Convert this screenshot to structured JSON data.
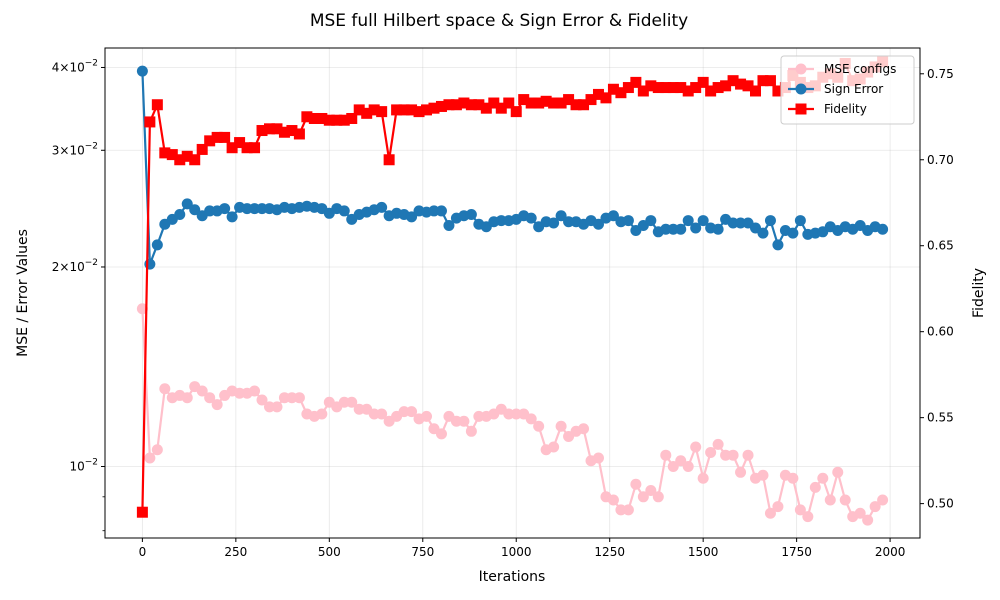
{
  "chart_data": {
    "type": "line",
    "title": "MSE full Hilbert space & Sign Error & Fidelity",
    "xlabel": "Iterations",
    "ylabel_left": "MSE / Error Values",
    "ylabel_right": "Fidelity",
    "xlim": [
      -100,
      2080
    ],
    "ylim_left": [
      0.0078,
      0.0428
    ],
    "yscale_left": "log",
    "ylim_right": [
      0.48,
      0.765
    ],
    "legend_position": "top-right",
    "grid": true,
    "x_ticks": [
      0,
      250,
      500,
      750,
      1000,
      1250,
      1500,
      1750,
      2000
    ],
    "x_tick_labels": [
      "0",
      "250",
      "500",
      "750",
      "1000",
      "1250",
      "1500",
      "1750",
      "2000"
    ],
    "y_left_ticks": [
      0.04,
      0.03,
      0.02,
      0.01
    ],
    "y_left_tick_labels": [
      {
        "base": "4",
        "mid": "×10",
        "exp": "−2"
      },
      {
        "base": "3",
        "mid": "×10",
        "exp": "−2"
      },
      {
        "base": "2",
        "mid": "×10",
        "exp": "−2"
      },
      {
        "base": "",
        "mid": "10",
        "exp": "−2"
      }
    ],
    "y_left_minor_ticks": [
      0.009,
      0.008
    ],
    "y_right_ticks": [
      0.5,
      0.55,
      0.6,
      0.65,
      0.7,
      0.75
    ],
    "y_right_tick_labels": [
      "0.50",
      "0.55",
      "0.60",
      "0.65",
      "0.70",
      "0.75"
    ],
    "x": [
      0,
      20,
      40,
      60,
      80,
      100,
      120,
      140,
      160,
      180,
      200,
      220,
      240,
      260,
      280,
      300,
      320,
      340,
      360,
      380,
      400,
      420,
      440,
      460,
      480,
      500,
      520,
      540,
      560,
      580,
      600,
      620,
      640,
      660,
      680,
      700,
      720,
      740,
      760,
      780,
      800,
      820,
      840,
      860,
      880,
      900,
      920,
      940,
      960,
      980,
      1000,
      1020,
      1040,
      1060,
      1080,
      1100,
      1120,
      1140,
      1160,
      1180,
      1200,
      1220,
      1240,
      1260,
      1280,
      1300,
      1320,
      1340,
      1360,
      1380,
      1400,
      1420,
      1440,
      1460,
      1480,
      1500,
      1520,
      1540,
      1560,
      1580,
      1600,
      1620,
      1640,
      1660,
      1680,
      1700,
      1720,
      1740,
      1760,
      1780,
      1800,
      1820,
      1840,
      1860,
      1880,
      1900,
      1920,
      1940,
      1960,
      1980
    ],
    "series": [
      {
        "name": "MSE configs",
        "axis": "left",
        "color": "#ffc0cb",
        "marker": "circle",
        "values": [
          0.0173,
          0.0103,
          0.0106,
          0.0131,
          0.0127,
          0.0128,
          0.0127,
          0.0132,
          0.013,
          0.0127,
          0.0124,
          0.0128,
          0.013,
          0.0129,
          0.0129,
          0.013,
          0.0126,
          0.0123,
          0.0123,
          0.0127,
          0.0127,
          0.0127,
          0.012,
          0.0119,
          0.012,
          0.0125,
          0.0123,
          0.0125,
          0.0125,
          0.0122,
          0.0122,
          0.012,
          0.012,
          0.0117,
          0.0119,
          0.0121,
          0.0121,
          0.0118,
          0.0119,
          0.0114,
          0.0112,
          0.0119,
          0.0117,
          0.0117,
          0.0113,
          0.0119,
          0.0119,
          0.012,
          0.0122,
          0.012,
          0.012,
          0.012,
          0.0118,
          0.0115,
          0.0106,
          0.0107,
          0.0115,
          0.0111,
          0.0113,
          0.0114,
          0.0102,
          0.0103,
          0.009,
          0.0089,
          0.0086,
          0.0086,
          0.0094,
          0.009,
          0.0092,
          0.009,
          0.0104,
          0.01,
          0.0102,
          0.01,
          0.0107,
          0.0096,
          0.0105,
          0.0108,
          0.0104,
          0.0104,
          0.0098,
          0.0104,
          0.0096,
          0.0097,
          0.0085,
          0.0087,
          0.0097,
          0.0096,
          0.0086,
          0.0084,
          0.0093,
          0.0096,
          0.0089,
          0.0098,
          0.0089,
          0.0084,
          0.0085,
          0.0083,
          0.0087,
          0.0089
        ]
      },
      {
        "name": "Sign Error",
        "axis": "left",
        "color": "#1f77b4",
        "marker": "circle",
        "values": [
          0.0395,
          0.0202,
          0.0216,
          0.0232,
          0.0236,
          0.024,
          0.0249,
          0.0244,
          0.0239,
          0.0243,
          0.0243,
          0.0245,
          0.0238,
          0.0246,
          0.0245,
          0.0245,
          0.0245,
          0.0245,
          0.0244,
          0.0246,
          0.0245,
          0.0246,
          0.0247,
          0.0246,
          0.0245,
          0.0241,
          0.0245,
          0.0243,
          0.0236,
          0.024,
          0.0242,
          0.0244,
          0.0246,
          0.0239,
          0.0241,
          0.024,
          0.0238,
          0.0243,
          0.0242,
          0.0243,
          0.0243,
          0.0231,
          0.0237,
          0.0239,
          0.024,
          0.0232,
          0.023,
          0.0234,
          0.0235,
          0.0235,
          0.0236,
          0.0239,
          0.0237,
          0.023,
          0.0234,
          0.0233,
          0.0239,
          0.0234,
          0.0234,
          0.0232,
          0.0235,
          0.0232,
          0.0237,
          0.0239,
          0.0234,
          0.0235,
          0.0227,
          0.0231,
          0.0235,
          0.0226,
          0.0228,
          0.0228,
          0.0228,
          0.0235,
          0.0229,
          0.0235,
          0.0229,
          0.0228,
          0.0236,
          0.0233,
          0.0233,
          0.0233,
          0.0229,
          0.0225,
          0.0235,
          0.0216,
          0.0227,
          0.0225,
          0.0235,
          0.0224,
          0.0225,
          0.0226,
          0.023,
          0.0227,
          0.023,
          0.0228,
          0.0231,
          0.0227,
          0.023,
          0.0228
        ]
      },
      {
        "name": "Fidelity",
        "axis": "right",
        "color": "#ff0000",
        "marker": "square",
        "values": [
          0.495,
          0.722,
          0.732,
          0.704,
          0.703,
          0.7,
          0.702,
          0.7,
          0.706,
          0.711,
          0.713,
          0.713,
          0.707,
          0.71,
          0.707,
          0.707,
          0.717,
          0.718,
          0.718,
          0.716,
          0.717,
          0.715,
          0.725,
          0.724,
          0.724,
          0.723,
          0.723,
          0.723,
          0.724,
          0.729,
          0.727,
          0.729,
          0.728,
          0.7,
          0.729,
          0.729,
          0.729,
          0.728,
          0.729,
          0.73,
          0.731,
          0.732,
          0.732,
          0.733,
          0.732,
          0.732,
          0.73,
          0.733,
          0.73,
          0.733,
          0.728,
          0.735,
          0.733,
          0.733,
          0.734,
          0.733,
          0.733,
          0.735,
          0.732,
          0.732,
          0.735,
          0.738,
          0.736,
          0.741,
          0.739,
          0.742,
          0.745,
          0.74,
          0.743,
          0.742,
          0.742,
          0.742,
          0.742,
          0.74,
          0.742,
          0.745,
          0.74,
          0.742,
          0.743,
          0.746,
          0.744,
          0.743,
          0.74,
          0.746,
          0.746,
          0.74,
          0.742,
          0.749,
          0.745,
          0.742,
          0.743,
          0.748,
          0.75,
          0.748,
          0.756,
          0.746,
          0.747,
          0.751,
          0.754,
          0.757
        ]
      }
    ]
  }
}
